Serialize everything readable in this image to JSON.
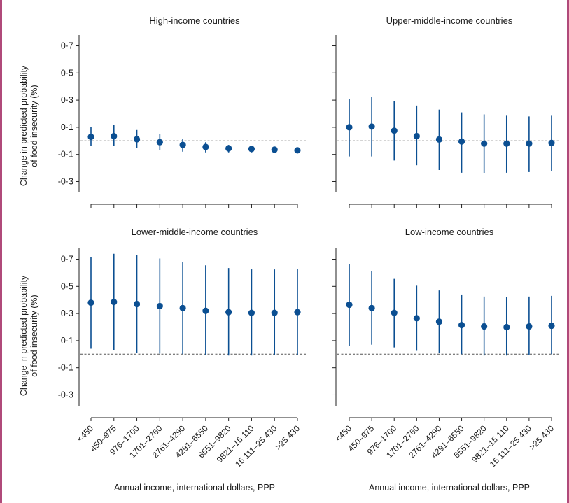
{
  "colors": {
    "marker": "#0b4f92",
    "axis": "#222222",
    "refline": "#555555",
    "frame": "#b04a7a"
  },
  "y_axis_label_lines": [
    "Change in predicted probability",
    "of food insecurity (%)"
  ],
  "x_axis_label": "Annual income, international dollars, PPP",
  "chart_data": [
    {
      "type": "scatter",
      "title": "High-income countries",
      "categories": [
        "<450",
        "450–975",
        "976–1700",
        "1701–2760",
        "2761–4290",
        "4291–6550",
        "6551–9820",
        "9821–15 110",
        "15 111–25 430",
        ">25 430"
      ],
      "estimate": [
        0.03,
        0.035,
        0.012,
        -0.01,
        -0.03,
        -0.045,
        -0.055,
        -0.06,
        -0.065,
        -0.07
      ],
      "ci_lower": [
        -0.035,
        -0.035,
        -0.055,
        -0.07,
        -0.08,
        -0.085,
        -0.085,
        -0.085,
        -0.09,
        -0.09
      ],
      "ci_upper": [
        0.1,
        0.115,
        0.08,
        0.05,
        0.015,
        -0.01,
        -0.03,
        -0.04,
        -0.045,
        -0.05
      ],
      "reference_line": 0,
      "ylim": [
        -0.38,
        0.78
      ],
      "yticks": [
        "-0·3",
        "-0·1",
        "0·1",
        "0·3",
        "0·5",
        "0·7"
      ],
      "ytick_values": [
        -0.3,
        -0.1,
        0.1,
        0.3,
        0.5,
        0.7
      ]
    },
    {
      "type": "scatter",
      "title": "Upper-middle-income countries",
      "categories": [
        "<450",
        "450–975",
        "976–1700",
        "1701–2760",
        "2761–4290",
        "4291–6550",
        "6551–9820",
        "9821–15 110",
        "15 111–25 430",
        ">25 430"
      ],
      "estimate": [
        0.1,
        0.105,
        0.075,
        0.035,
        0.01,
        -0.005,
        -0.02,
        -0.02,
        -0.02,
        -0.015
      ],
      "ci_lower": [
        -0.115,
        -0.115,
        -0.145,
        -0.18,
        -0.215,
        -0.235,
        -0.24,
        -0.235,
        -0.23,
        -0.225
      ],
      "ci_upper": [
        0.31,
        0.325,
        0.295,
        0.26,
        0.23,
        0.21,
        0.195,
        0.185,
        0.18,
        0.185
      ],
      "reference_line": 0,
      "ylim": [
        -0.38,
        0.78
      ],
      "yticks": [
        "-0·3",
        "-0·1",
        "0·1",
        "0·3",
        "0·5",
        "0·7"
      ],
      "ytick_values": [
        -0.3,
        -0.1,
        0.1,
        0.3,
        0.5,
        0.7
      ]
    },
    {
      "type": "scatter",
      "title": "Lower-middle-income countries",
      "categories": [
        "<450",
        "450–975",
        "976–1700",
        "1701–2760",
        "2761–4290",
        "4291–6550",
        "6551–9820",
        "9821–15 110",
        "15 111–25 430",
        ">25 430"
      ],
      "estimate": [
        0.38,
        0.385,
        0.37,
        0.355,
        0.34,
        0.32,
        0.31,
        0.305,
        0.305,
        0.31
      ],
      "ci_lower": [
        0.04,
        0.03,
        0.01,
        0.005,
        0.0,
        -0.005,
        -0.01,
        -0.01,
        -0.005,
        -0.005
      ],
      "ci_upper": [
        0.715,
        0.74,
        0.73,
        0.705,
        0.68,
        0.655,
        0.635,
        0.625,
        0.625,
        0.63
      ],
      "reference_line": 0,
      "ylim": [
        -0.38,
        0.78
      ],
      "yticks": [
        "-0·3",
        "-0·1",
        "0·1",
        "0·3",
        "0·5",
        "0·7"
      ],
      "ytick_values": [
        -0.3,
        -0.1,
        0.1,
        0.3,
        0.5,
        0.7
      ]
    },
    {
      "type": "scatter",
      "title": "Low-income countries",
      "categories": [
        "<450",
        "450–975",
        "976–1700",
        "1701–2760",
        "2761–4290",
        "4291–6550",
        "6551–9820",
        "9821–15 110",
        "15 111–25 430",
        ">25 430"
      ],
      "estimate": [
        0.365,
        0.34,
        0.305,
        0.265,
        0.24,
        0.215,
        0.205,
        0.2,
        0.205,
        0.21
      ],
      "ci_lower": [
        0.06,
        0.07,
        0.05,
        0.025,
        0.01,
        0.0,
        -0.01,
        -0.01,
        -0.005,
        0.0
      ],
      "ci_upper": [
        0.665,
        0.615,
        0.555,
        0.505,
        0.47,
        0.44,
        0.425,
        0.42,
        0.425,
        0.43
      ],
      "reference_line": 0,
      "ylim": [
        -0.38,
        0.78
      ],
      "yticks": [
        "-0·3",
        "-0·1",
        "0·1",
        "0·3",
        "0·5",
        "0·7"
      ],
      "ytick_values": [
        -0.3,
        -0.1,
        0.1,
        0.3,
        0.5,
        0.7
      ]
    }
  ]
}
